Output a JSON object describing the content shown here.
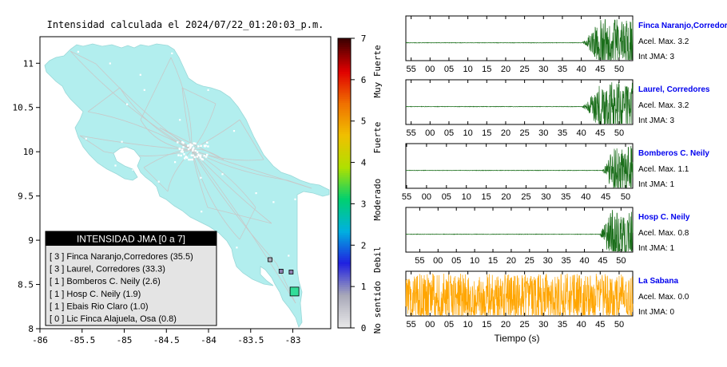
{
  "map": {
    "title": "Intensidad calculada el 2024/07/22_01:20:03_p.m.",
    "x_ticks": [
      "-86",
      "-85.5",
      "-85",
      "-84.5",
      "-84",
      "-83.5",
      "-83"
    ],
    "x_tick_values": [
      -86,
      -85.5,
      -85,
      -84.5,
      -84,
      -83.5,
      -83
    ],
    "y_ticks": [
      "11",
      "10.5",
      "10",
      "9.5",
      "9",
      "8.5",
      "8"
    ],
    "y_tick_values": [
      11,
      10.5,
      10,
      9.5,
      9,
      8.5,
      8
    ],
    "xlim": [
      -86,
      -82.55
    ],
    "ylim": [
      8,
      11.3
    ],
    "land_color": "#b2eeee",
    "legend": {
      "title": "INTENSIDAD JMA [0 a 7]",
      "items": [
        "[ 3 ] Finca Naranjo,Corredores (35.5)",
        "[ 3 ] Laurel, Corredores (33.3)",
        "[ 1 ] Bomberos C. Neily (2.6)",
        "[ 1 ] Hosp C. Neily (1.9)",
        "[ 1 ] Ebais Rio Claro (1.0)",
        "[ 0 ] Lic Finca Alajuela, Osa (0.8)"
      ]
    },
    "station_markers": [
      {
        "lon": -83.27,
        "lat": 8.78,
        "color": "#b0b0c0"
      },
      {
        "lon": -83.14,
        "lat": 8.65,
        "color": "#9080b0"
      },
      {
        "lon": -83.02,
        "lat": 8.64,
        "color": "#9080b0"
      },
      {
        "lon": -82.98,
        "lat": 8.42,
        "color": "#33dd99"
      }
    ]
  },
  "colorbar": {
    "ticks": [
      "0",
      "1",
      "2",
      "3",
      "4",
      "5",
      "6",
      "7"
    ],
    "labels": [
      "No sentido",
      "Debil",
      "Moderado",
      "Fuerte",
      "Muy Fuerte"
    ],
    "colors": [
      "#e8e8e8",
      "#a8a8b8",
      "#2020e0",
      "#00b0e0",
      "#00d070",
      "#b0e000",
      "#f0c000",
      "#f07000",
      "#e00000",
      "#400000"
    ]
  },
  "chart_data": {
    "type": "line",
    "xlabel": "Tiempo (s)",
    "x_ticks": [
      "55",
      "00",
      "05",
      "10",
      "15",
      "20",
      "25",
      "30",
      "35",
      "40",
      "45",
      "50"
    ],
    "series": [
      {
        "name": "Finca Naranjo,Corredores",
        "acel": "Acel. Max. 3.2",
        "int": "Int JMA: 3",
        "color": "#1a6e1a",
        "onset": 40,
        "grow": 5,
        "end": 54,
        "amp": 1.0,
        "noise": 0.01
      },
      {
        "name": "Laurel, Corredores",
        "acel": "Acel. Max. 3.2",
        "int": "Int JMA: 3",
        "color": "#1a6e1a",
        "onset": 40,
        "grow": 5,
        "end": 54,
        "amp": 1.0,
        "noise": 0.01
      },
      {
        "name": "Bomberos C. Neily",
        "acel": "Acel. Max. 1.1",
        "int": "Int JMA: 1",
        "color": "#1a6e1a",
        "onset": 44,
        "grow": 3,
        "end": 54,
        "amp": 1.0,
        "noise": 0.01
      },
      {
        "name": "Hosp C. Neily",
        "acel": "Acel. Max. 0.8",
        "int": "Int JMA: 1",
        "color": "#1a6e1a",
        "onset": 44,
        "grow": 3,
        "end": 54,
        "amp": 1.0,
        "noise": 0.01
      },
      {
        "name": "La Sabana",
        "acel": "Acel. Max. 0.0",
        "int": "Int JMA: 0",
        "color": "#ffa500",
        "onset": 0,
        "grow": 0,
        "end": 54,
        "amp": 0.55,
        "noise": 1.0
      }
    ]
  }
}
